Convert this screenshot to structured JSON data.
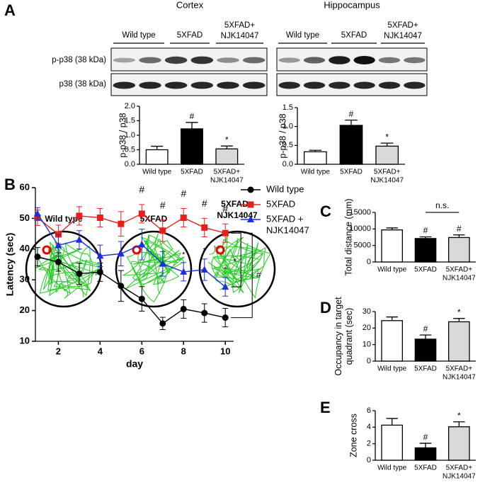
{
  "panel_labels": [
    "A",
    "B",
    "C",
    "D",
    "E"
  ],
  "blots": {
    "regions": [
      "Cortex",
      "Hippocampus"
    ],
    "groups": [
      "Wild type",
      "5XFAD",
      [
        "5XFAD+",
        "NJK14047"
      ]
    ],
    "rows": [
      "p-p38 (38 kDa)",
      "p38 (38 kDa)"
    ]
  },
  "maze": {
    "titles": [
      "Wild type",
      "5XFAD",
      [
        "5XFAD+",
        "NJK14047"
      ]
    ]
  },
  "chart_data": [
    {
      "type": "bar",
      "y_label": "p-p38 / p38",
      "categories": [
        "Wild type",
        "5XFAD",
        [
          "5XFAD+",
          "NJK14047"
        ]
      ],
      "values": [
        0.5,
        1.22,
        0.53
      ],
      "errors": [
        0.12,
        0.22,
        0.1
      ],
      "colors": [
        "#ffffff",
        "#000000",
        "#d9d9d9"
      ],
      "markers": [
        null,
        "#",
        "*"
      ],
      "ylim": [
        0,
        2
      ],
      "yticks": [
        {
          "value": 0,
          "label": "0.0"
        },
        {
          "value": 0.5,
          "label": "0.5"
        },
        {
          "value": 1,
          "label": "1.0"
        },
        {
          "value": 1.5,
          "label": "1.5"
        },
        {
          "value": 2,
          "label": "2.0"
        }
      ]
    },
    {
      "type": "bar",
      "y_label": "p-p38 / p38",
      "categories": [
        "Wild type",
        "5XFAD",
        [
          "5XFAD+",
          "NJK14047"
        ]
      ],
      "values": [
        0.33,
        1.03,
        0.48
      ],
      "errors": [
        0.04,
        0.14,
        0.08
      ],
      "colors": [
        "#ffffff",
        "#000000",
        "#d9d9d9"
      ],
      "markers": [
        null,
        "#",
        "*"
      ],
      "ylim": [
        0,
        1.5
      ],
      "yticks": [
        {
          "value": 0,
          "label": "0.0"
        },
        {
          "value": 0.5,
          "label": "0.5"
        },
        {
          "value": 1,
          "label": "1.0"
        },
        {
          "value": 1.5,
          "label": "1.5"
        }
      ]
    },
    {
      "type": "line",
      "x_label": "day",
      "y_label": "Latency (sec)",
      "x": [
        1,
        2,
        3,
        4,
        5,
        6,
        7,
        8,
        9,
        10
      ],
      "xlim": [
        0.9,
        10.4
      ],
      "ylim": [
        10,
        60
      ],
      "xticks": [
        2,
        4,
        6,
        8,
        10
      ],
      "yticks": [
        10,
        20,
        30,
        40,
        50,
        60
      ],
      "bracket_labels": [
        "*",
        "#"
      ],
      "series": [
        {
          "name": "Wild type",
          "color": "#000000",
          "marker": "circle",
          "values": [
            37.5,
            35.8,
            32,
            32.5,
            28,
            23.8,
            15.8,
            20.5,
            19.2,
            17.7
          ],
          "errors": [
            3,
            3,
            3.5,
            3,
            5,
            4,
            2,
            3,
            3,
            3
          ],
          "markers": [
            null,
            null,
            null,
            null,
            null,
            null,
            null,
            null,
            null,
            null
          ]
        },
        {
          "name": "5XFAD",
          "color": "#e8201c",
          "marker": "square",
          "values": [
            50.2,
            44.8,
            50.8,
            50.2,
            48.2,
            51.5,
            46,
            50.2,
            47,
            45.2
          ],
          "errors": [
            2.5,
            3,
            3,
            3,
            4,
            3,
            3.5,
            3,
            3,
            3
          ],
          "markers": [
            null,
            null,
            null,
            null,
            null,
            "#",
            "#",
            "#",
            "#",
            "#"
          ]
        },
        {
          "name": [
            "5XFAD +",
            "NJK14047"
          ],
          "color": "#1a2fe0",
          "marker": "triangle",
          "values": [
            51.5,
            41.2,
            43,
            37.8,
            38.5,
            41.5,
            35.2,
            32.6,
            33.3,
            27.7
          ],
          "errors": [
            2,
            3.5,
            3,
            3.5,
            4,
            5,
            4,
            3,
            3.5,
            3
          ],
          "markers": [
            null,
            null,
            null,
            null,
            null,
            null,
            null,
            "*",
            "*",
            "*"
          ]
        }
      ]
    },
    {
      "type": "bar",
      "y_label": "Total distance (mm)",
      "categories": [
        "Wild type",
        "5XFAD",
        [
          "5XFAD+",
          "NJK14047"
        ]
      ],
      "values": [
        9700,
        7100,
        7400
      ],
      "errors": [
        600,
        500,
        800
      ],
      "colors": [
        "#ffffff",
        "#000000",
        "#d9d9d9"
      ],
      "markers": [
        null,
        "#",
        "#"
      ],
      "bracket_label": "n.s.",
      "ylim": [
        0,
        15000
      ],
      "yticks": [
        0,
        5000,
        10000,
        15000
      ]
    },
    {
      "type": "bar",
      "y_label": [
        "Occupancy in target",
        "quadrant (sec)"
      ],
      "categories": [
        "Wild type",
        "5XFAD",
        [
          "5XFAD+",
          "NJK14047"
        ]
      ],
      "values": [
        24.5,
        13.3,
        23.8
      ],
      "errors": [
        2.2,
        2.5,
        2
      ],
      "colors": [
        "#ffffff",
        "#000000",
        "#d9d9d9"
      ],
      "markers": [
        null,
        "#",
        "*"
      ],
      "ylim": [
        0,
        30
      ],
      "yticks": [
        0,
        10,
        20,
        30
      ]
    },
    {
      "type": "bar",
      "y_label": "Zone cross",
      "categories": [
        "Wild type",
        "5XFAD",
        [
          "5XFAD+",
          "NJK14047"
        ]
      ],
      "values": [
        4.25,
        1.5,
        4.05
      ],
      "errors": [
        0.8,
        0.55,
        0.6
      ],
      "colors": [
        "#ffffff",
        "#000000",
        "#d9d9d9"
      ],
      "markers": [
        null,
        "#",
        "*"
      ],
      "ylim": [
        0,
        6
      ],
      "yticks": [
        0,
        2,
        4,
        6
      ]
    }
  ]
}
